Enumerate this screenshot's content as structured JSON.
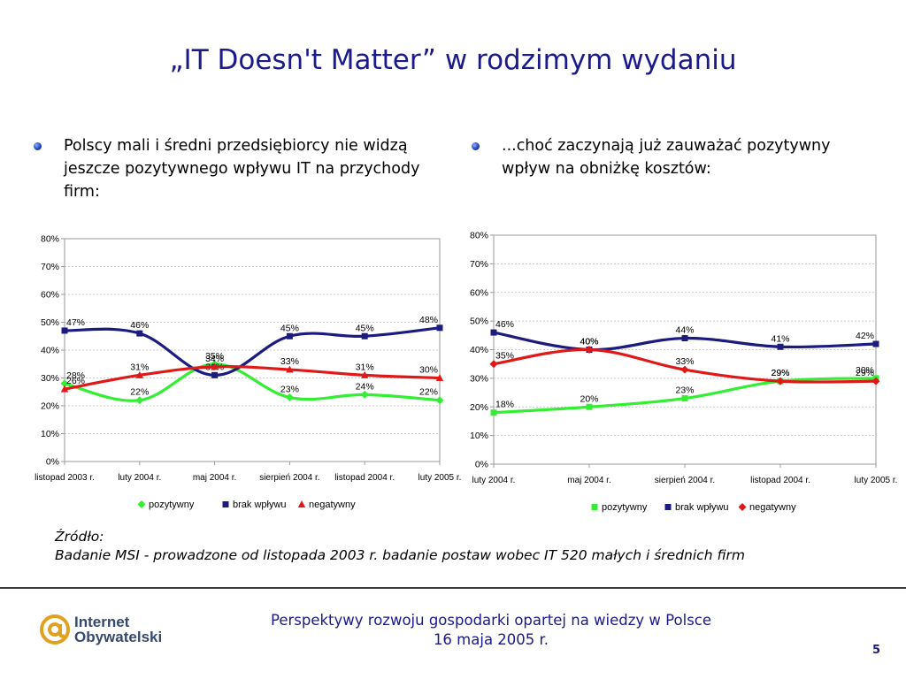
{
  "slide": {
    "title": "„IT Doesn't Matter” w rodzimym wydaniu",
    "bullet_left": "Polscy mali i średni przedsiębiorcy nie widzą jeszcze pozytywnego wpływu IT na przychody firm:",
    "bullet_right": "...choć zaczynają już zauważać pozytywny wpływ na obniżkę kosztów:",
    "source_label": "Źródło:",
    "source_text": "Badanie MSI - prowadzone od listopada 2003 r. badanie postaw wobec IT 520 małych i średnich firm",
    "footer_line1": "Perspektywy rozwoju gospodarki opartej na wiedzy w Polsce",
    "footer_line2": "16 maja 2005 r.",
    "page_number": "5",
    "logo_line1": "Internet",
    "logo_line2": "Obywatelski"
  },
  "colors": {
    "title": "#1a1a8c",
    "pozytywny": "#33ee33",
    "brak": "#1c1c80",
    "negatywny": "#e01818"
  },
  "chart_data": [
    {
      "type": "line",
      "categories": [
        "listopad 2003 r.",
        "luty 2004 r.",
        "maj 2004 r.",
        "sierpień 2004 r.",
        "listopad 2004 r.",
        "luty 2005 r."
      ],
      "ylim": [
        0,
        80
      ],
      "yticks": [
        "0%",
        "10%",
        "20%",
        "30%",
        "40%",
        "50%",
        "60%",
        "70%",
        "80%"
      ],
      "grid": true,
      "legend": "bottom",
      "series": [
        {
          "name": "pozytywny",
          "marker": "diamond",
          "values": [
            28,
            22,
            35,
            23,
            24,
            22
          ],
          "labels": [
            "28%",
            "22%",
            "35%",
            "23%",
            "24%",
            "22%"
          ]
        },
        {
          "name": "brak wpływu",
          "marker": "square",
          "values": [
            47,
            46,
            31,
            45,
            45,
            48
          ],
          "labels": [
            "47%",
            "46%",
            "31%",
            "45%",
            "45%",
            "48%"
          ]
        },
        {
          "name": "negatywny",
          "marker": "triangle",
          "values": [
            26,
            31,
            34,
            33,
            31,
            30
          ],
          "labels": [
            "26%",
            "31%",
            "34%",
            "33%",
            "31%",
            "30%"
          ]
        }
      ]
    },
    {
      "type": "line",
      "categories": [
        "luty 2004 r.",
        "maj 2004 r.",
        "sierpień 2004 r.",
        "listopad 2004 r.",
        "luty 2005 r."
      ],
      "ylim": [
        0,
        80
      ],
      "yticks": [
        "0%",
        "10%",
        "20%",
        "30%",
        "40%",
        "50%",
        "60%",
        "70%",
        "80%"
      ],
      "grid": true,
      "legend": "bottom",
      "series": [
        {
          "name": "pozytywny",
          "marker": "square",
          "values": [
            18,
            20,
            23,
            29,
            30
          ],
          "labels": [
            "18%",
            "20%",
            "23%",
            "29%",
            "30%"
          ]
        },
        {
          "name": "brak wpływu",
          "marker": "square",
          "values": [
            46,
            40,
            44,
            41,
            42
          ],
          "labels": [
            "46%",
            "40%",
            "44%",
            "41%",
            "42%"
          ]
        },
        {
          "name": "negatywny",
          "marker": "diamond",
          "values": [
            35,
            40,
            33,
            29,
            29
          ],
          "labels": [
            "35%",
            "40%",
            "33%",
            "29%",
            "29%"
          ]
        }
      ]
    }
  ]
}
